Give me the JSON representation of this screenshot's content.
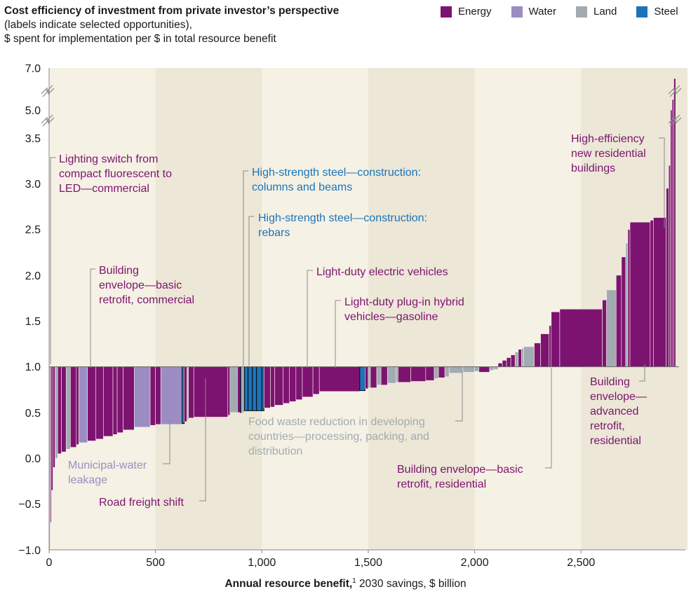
{
  "header": {
    "title_bold": "Cost efficiency of investment from private investor’s perspective",
    "title_rest": " (labels indicate selected opportunities),",
    "subtitle": "$ spent for implementation per $ in total resource benefit"
  },
  "legend": [
    {
      "label": "Energy",
      "color": "#7d1370"
    },
    {
      "label": "Water",
      "color": "#9b8dc2"
    },
    {
      "label": "Land",
      "color": "#a3abb2"
    },
    {
      "label": "Steel",
      "color": "#1b74bb"
    }
  ],
  "colors": {
    "Energy": "#7d1370",
    "Water": "#9b8dc2",
    "Land": "#a3abb2",
    "Steel": "#1b74bb",
    "band_light": "#f5f1e4",
    "band_dark": "#ece7d6"
  },
  "xaxis": {
    "title_bold": "Annual resource benefit,",
    "title_sup": "1",
    "title_rest": " 2030 savings, $ billion"
  },
  "chart_data": {
    "type": "bar",
    "subtype": "cost-curve",
    "xlim": [
      0,
      3000
    ],
    "xticks": [
      0,
      500,
      1000,
      1500,
      2000,
      2500
    ],
    "xtick_labels": [
      "0",
      "500",
      "1,000",
      "1,500",
      "2,000",
      "2,500"
    ],
    "ylim": [
      -1.0,
      7.0
    ],
    "yticks": [
      -1.0,
      -0.5,
      0.0,
      0.5,
      1.0,
      1.5,
      2.0,
      2.5,
      3.0,
      3.5,
      5.0,
      7.0
    ],
    "ytick_labels": [
      "−1.0",
      "−0.5",
      "0.0",
      "0.5",
      "1.0",
      "1.5",
      "2.0",
      "2.5",
      "3.0",
      "3.5",
      "5.0",
      "7.0"
    ],
    "axis_break": "3.5 to 5.0 and 5.0 to 7.0",
    "baseline": 1.0,
    "segments": [
      {
        "x0": 0,
        "x1": 5,
        "y": -1.0,
        "cat": "Land"
      },
      {
        "x0": 5,
        "x1": 10,
        "y": -0.7,
        "cat": "Energy"
      },
      {
        "x0": 10,
        "x1": 18,
        "y": -0.35,
        "cat": "Energy"
      },
      {
        "x0": 18,
        "x1": 28,
        "y": -0.1,
        "cat": "Energy"
      },
      {
        "x0": 28,
        "x1": 40,
        "y": 0.0,
        "cat": "Land"
      },
      {
        "x0": 40,
        "x1": 58,
        "y": 0.05,
        "cat": "Energy"
      },
      {
        "x0": 58,
        "x1": 80,
        "y": 0.07,
        "cat": "Energy"
      },
      {
        "x0": 80,
        "x1": 100,
        "y": 0.1,
        "cat": "Land"
      },
      {
        "x0": 100,
        "x1": 128,
        "y": 0.12,
        "cat": "Energy"
      },
      {
        "x0": 128,
        "x1": 140,
        "y": 0.15,
        "cat": "Energy"
      },
      {
        "x0": 140,
        "x1": 180,
        "y": 0.17,
        "cat": "Water"
      },
      {
        "x0": 180,
        "x1": 220,
        "y": 0.19,
        "cat": "Energy"
      },
      {
        "x0": 220,
        "x1": 255,
        "y": 0.21,
        "cat": "Energy"
      },
      {
        "x0": 255,
        "x1": 300,
        "y": 0.24,
        "cat": "Energy"
      },
      {
        "x0": 300,
        "x1": 320,
        "y": 0.26,
        "cat": "Energy"
      },
      {
        "x0": 320,
        "x1": 348,
        "y": 0.28,
        "cat": "Energy"
      },
      {
        "x0": 348,
        "x1": 400,
        "y": 0.31,
        "cat": "Energy"
      },
      {
        "x0": 400,
        "x1": 475,
        "y": 0.34,
        "cat": "Water"
      },
      {
        "x0": 475,
        "x1": 500,
        "y": 0.36,
        "cat": "Energy"
      },
      {
        "x0": 500,
        "x1": 525,
        "y": 0.37,
        "cat": "Energy"
      },
      {
        "x0": 525,
        "x1": 625,
        "y": 0.37,
        "cat": "Water"
      },
      {
        "x0": 625,
        "x1": 635,
        "y": 0.38,
        "cat": "Steel"
      },
      {
        "x0": 635,
        "x1": 648,
        "y": 0.4,
        "cat": "Energy"
      },
      {
        "x0": 648,
        "x1": 655,
        "y": 0.42,
        "cat": "Land"
      },
      {
        "x0": 655,
        "x1": 680,
        "y": 0.44,
        "cat": "Energy"
      },
      {
        "x0": 680,
        "x1": 840,
        "y": 0.45,
        "cat": "Energy"
      },
      {
        "x0": 840,
        "x1": 850,
        "y": 0.47,
        "cat": "Energy"
      },
      {
        "x0": 850,
        "x1": 885,
        "y": 0.5,
        "cat": "Land"
      },
      {
        "x0": 885,
        "x1": 900,
        "y": 0.5,
        "cat": "Energy"
      },
      {
        "x0": 900,
        "x1": 905,
        "y": 0.5,
        "cat": "Steel"
      },
      {
        "x0": 905,
        "x1": 918,
        "y": 0.5,
        "cat": "Land"
      },
      {
        "x0": 918,
        "x1": 935,
        "y": 0.52,
        "cat": "Steel"
      },
      {
        "x0": 935,
        "x1": 955,
        "y": 0.52,
        "cat": "Steel"
      },
      {
        "x0": 955,
        "x1": 975,
        "y": 0.52,
        "cat": "Steel"
      },
      {
        "x0": 975,
        "x1": 1000,
        "y": 0.52,
        "cat": "Steel"
      },
      {
        "x0": 1000,
        "x1": 1010,
        "y": 0.52,
        "cat": "Steel"
      },
      {
        "x0": 1010,
        "x1": 1040,
        "y": 0.55,
        "cat": "Energy"
      },
      {
        "x0": 1040,
        "x1": 1060,
        "y": 0.56,
        "cat": "Energy"
      },
      {
        "x0": 1060,
        "x1": 1100,
        "y": 0.58,
        "cat": "Energy"
      },
      {
        "x0": 1100,
        "x1": 1130,
        "y": 0.6,
        "cat": "Energy"
      },
      {
        "x0": 1130,
        "x1": 1160,
        "y": 0.62,
        "cat": "Energy"
      },
      {
        "x0": 1160,
        "x1": 1190,
        "y": 0.64,
        "cat": "Energy"
      },
      {
        "x0": 1190,
        "x1": 1240,
        "y": 0.67,
        "cat": "Energy"
      },
      {
        "x0": 1240,
        "x1": 1270,
        "y": 0.7,
        "cat": "Energy"
      },
      {
        "x0": 1270,
        "x1": 1460,
        "y": 0.73,
        "cat": "Energy"
      },
      {
        "x0": 1460,
        "x1": 1485,
        "y": 0.74,
        "cat": "Steel"
      },
      {
        "x0": 1485,
        "x1": 1500,
        "y": 0.76,
        "cat": "Energy"
      },
      {
        "x0": 1500,
        "x1": 1510,
        "y": 0.77,
        "cat": "Land"
      },
      {
        "x0": 1510,
        "x1": 1540,
        "y": 0.77,
        "cat": "Energy"
      },
      {
        "x0": 1540,
        "x1": 1560,
        "y": 0.8,
        "cat": "Land"
      },
      {
        "x0": 1560,
        "x1": 1590,
        "y": 0.8,
        "cat": "Energy"
      },
      {
        "x0": 1590,
        "x1": 1630,
        "y": 0.82,
        "cat": "Land"
      },
      {
        "x0": 1630,
        "x1": 1640,
        "y": 0.83,
        "cat": "Land"
      },
      {
        "x0": 1640,
        "x1": 1700,
        "y": 0.83,
        "cat": "Energy"
      },
      {
        "x0": 1700,
        "x1": 1770,
        "y": 0.84,
        "cat": "Energy"
      },
      {
        "x0": 1770,
        "x1": 1810,
        "y": 0.85,
        "cat": "Energy"
      },
      {
        "x0": 1810,
        "x1": 1830,
        "y": 0.87,
        "cat": "Land"
      },
      {
        "x0": 1830,
        "x1": 1860,
        "y": 0.88,
        "cat": "Energy"
      },
      {
        "x0": 1860,
        "x1": 1880,
        "y": 0.89,
        "cat": "Land"
      },
      {
        "x0": 1880,
        "x1": 1945,
        "y": 0.93,
        "cat": "Land"
      },
      {
        "x0": 1945,
        "x1": 2000,
        "y": 0.94,
        "cat": "Land"
      },
      {
        "x0": 2000,
        "x1": 2020,
        "y": 0.95,
        "cat": "Land"
      },
      {
        "x0": 2020,
        "x1": 2070,
        "y": 0.94,
        "cat": "Energy"
      },
      {
        "x0": 2070,
        "x1": 2090,
        "y": 0.96,
        "cat": "Land"
      },
      {
        "x0": 2090,
        "x1": 2110,
        "y": 0.97,
        "cat": "Land"
      },
      {
        "x0": 2110,
        "x1": 2130,
        "y": 1.04,
        "cat": "Energy"
      },
      {
        "x0": 2130,
        "x1": 2150,
        "y": 1.07,
        "cat": "Energy"
      },
      {
        "x0": 2150,
        "x1": 2170,
        "y": 1.1,
        "cat": "Energy"
      },
      {
        "x0": 2170,
        "x1": 2190,
        "y": 1.13,
        "cat": "Energy"
      },
      {
        "x0": 2190,
        "x1": 2205,
        "y": 1.16,
        "cat": "Land"
      },
      {
        "x0": 2205,
        "x1": 2220,
        "y": 1.19,
        "cat": "Energy"
      },
      {
        "x0": 2220,
        "x1": 2230,
        "y": 1.2,
        "cat": "Land"
      },
      {
        "x0": 2230,
        "x1": 2280,
        "y": 1.22,
        "cat": "Land"
      },
      {
        "x0": 2280,
        "x1": 2310,
        "y": 1.26,
        "cat": "Energy"
      },
      {
        "x0": 2310,
        "x1": 2350,
        "y": 1.36,
        "cat": "Energy"
      },
      {
        "x0": 2350,
        "x1": 2360,
        "y": 1.45,
        "cat": "Energy"
      },
      {
        "x0": 2360,
        "x1": 2400,
        "y": 1.6,
        "cat": "Energy"
      },
      {
        "x0": 2400,
        "x1": 2600,
        "y": 1.63,
        "cat": "Energy"
      },
      {
        "x0": 2600,
        "x1": 2620,
        "y": 1.73,
        "cat": "Energy"
      },
      {
        "x0": 2620,
        "x1": 2665,
        "y": 1.84,
        "cat": "Land"
      },
      {
        "x0": 2665,
        "x1": 2690,
        "y": 2.0,
        "cat": "Energy"
      },
      {
        "x0": 2690,
        "x1": 2710,
        "y": 2.2,
        "cat": "Energy"
      },
      {
        "x0": 2710,
        "x1": 2720,
        "y": 2.35,
        "cat": "Land"
      },
      {
        "x0": 2720,
        "x1": 2730,
        "y": 2.5,
        "cat": "Energy"
      },
      {
        "x0": 2730,
        "x1": 2825,
        "y": 2.58,
        "cat": "Energy"
      },
      {
        "x0": 2825,
        "x1": 2840,
        "y": 2.6,
        "cat": "Energy"
      },
      {
        "x0": 2840,
        "x1": 2900,
        "y": 2.63,
        "cat": "Energy"
      },
      {
        "x0": 2900,
        "x1": 2912,
        "y": 2.95,
        "cat": "Energy"
      },
      {
        "x0": 2912,
        "x1": 2920,
        "y": 3.2,
        "cat": "Energy"
      },
      {
        "x0": 2920,
        "x1": 2928,
        "y": 5.0,
        "cat": "Energy"
      },
      {
        "x0": 2928,
        "x1": 2936,
        "y": 5.5,
        "cat": "Energy"
      },
      {
        "x0": 2936,
        "x1": 2945,
        "y": 6.5,
        "cat": "Energy"
      }
    ]
  },
  "annotations": {
    "lighting": {
      "lines": [
        "Lighting switch from",
        "compact fluorescent to",
        "LED—commercial"
      ],
      "color": "#7d1370"
    },
    "envelope_commercial": {
      "lines": [
        "Building",
        "envelope—basic",
        "retrofit, commercial"
      ],
      "color": "#7d1370"
    },
    "steel_columns": {
      "lines": [
        "High-strength steel—construction:",
        "columns and beams"
      ],
      "color": "#1b74bb"
    },
    "steel_rebars": {
      "lines": [
        "High-strength steel—construction:",
        "rebars"
      ],
      "color": "#1b74bb"
    },
    "ev": {
      "lines": [
        "Light-duty electric vehicles"
      ],
      "color": "#7d1370"
    },
    "phev": {
      "lines": [
        "Light-duty plug-in hybrid",
        "vehicles—gasoline"
      ],
      "color": "#7d1370"
    },
    "high_eff": {
      "lines": [
        "High-efficiency",
        "new residential",
        "buildings"
      ],
      "color": "#7d1370"
    },
    "municipal": {
      "lines": [
        "Municipal-water",
        "leakage"
      ],
      "color": "#9b8dc2"
    },
    "road_freight": {
      "lines": [
        "Road freight shift"
      ],
      "color": "#7d1370"
    },
    "food_waste": {
      "lines": [
        "Food waste reduction in developing",
        "countries—processing, packing, and",
        "distribution"
      ],
      "color": "#a3abb2"
    },
    "envelope_residential": {
      "lines": [
        "Building envelope—basic",
        "retrofit, residential"
      ],
      "color": "#7d1370"
    },
    "envelope_advanced": {
      "lines": [
        "Building",
        "envelope—",
        "advanced",
        "retrofit,",
        "residential"
      ],
      "color": "#7d1370"
    }
  }
}
